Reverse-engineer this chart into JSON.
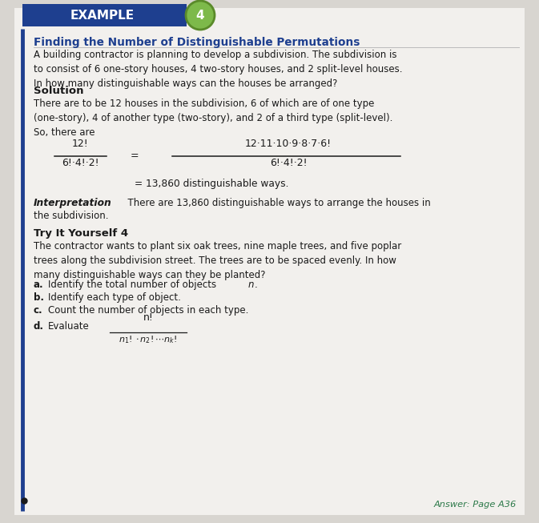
{
  "bg_color": "#d8d5d0",
  "content_bg": "#f2f0ed",
  "header_bg": "#1e3f8f",
  "header_text": "EXAMPLE",
  "header_number": "4",
  "circle_color": "#7db94a",
  "circle_ring_color": "#5a8a2a",
  "title_text": "Finding the Number of Distinguishable Permutations",
  "title_color": "#1e3f8f",
  "body_color": "#1a1a1a",
  "solution_label": "Solution",
  "try_label": "Try It Yourself 4",
  "answer_text": "Answer: Page A36",
  "answer_color": "#2d7a4a",
  "left_bar_color": "#1e3f8f",
  "problem_text": "A building contractor is planning to develop a subdivision. The subdivision is\nto consist of 6 one-story houses, 4 two-story houses, and 2 split-level houses.\nIn how many distinguishable ways can the houses be arranged?",
  "sol_body_text": "There are to be 12 houses in the subdivision, 6 of which are of one type\n(one-story), 4 of another type (two-story), and 2 of a third type (split-level).\nSo, there are",
  "try_body_text": "The contractor wants to plant six oak trees, nine maple trees, and five poplar\ntrees along the subdivision street. The trees are to be spaced evenly. In how\nmany distinguishable ways can they be planted?"
}
